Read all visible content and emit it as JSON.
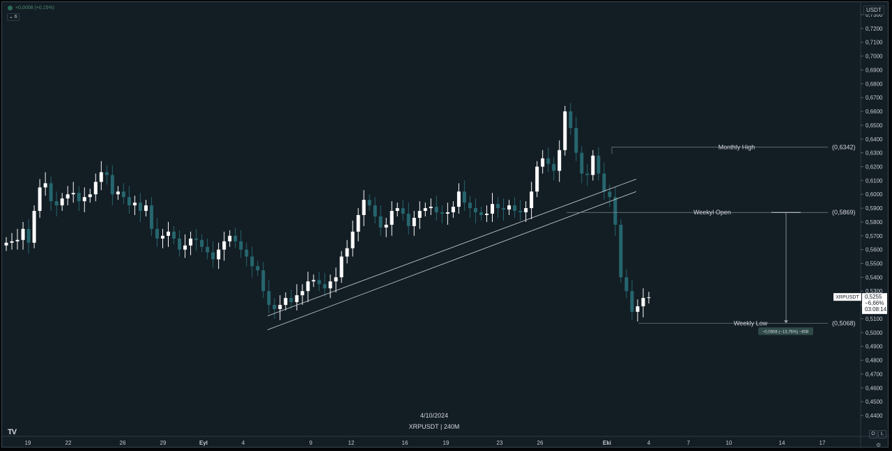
{
  "legend": {
    "change_text": "+0,0008 (+0,15%)",
    "indicator_box": "⌄ 6"
  },
  "currency": "USDT",
  "caption": {
    "date": "4/10/2024",
    "symbol_interval": "XRPUSDT | 240M"
  },
  "logo_text": "TV",
  "bottom_buttons": {
    "log": "O",
    "lin": "L"
  },
  "gear_icon": "⚙",
  "price_tag": {
    "symbol": "XRPUSDT",
    "price": "0,5255",
    "change": "−6,66%",
    "countdown": "03:08:14"
  },
  "colors": {
    "bg": "#131d24",
    "up": "#ffffff",
    "down": "#26666e",
    "line": "#d4d8dc",
    "text": "#c6ccd2"
  },
  "chart_data": {
    "type": "candlestick",
    "ylim": [
      0.43,
      0.735
    ],
    "y_ticks": [
      "0,7300",
      "0,7200",
      "0,7100",
      "0,7000",
      "0,6900",
      "0,6800",
      "0,6700",
      "0,6600",
      "0,6500",
      "0,6400",
      "0,6300",
      "0,6200",
      "0,6100",
      "0,6000",
      "0,5900",
      "0,5800",
      "0,5700",
      "0,5600",
      "0,5500",
      "0,5400",
      "0,5300",
      "0,5200",
      "0,5100",
      "0,5000",
      "0,4900",
      "0,4800",
      "0,4700",
      "0,4600",
      "0,4500",
      "0,4400"
    ],
    "x_ticks": [
      "19",
      "22",
      "26",
      "29",
      "Eyl",
      "4",
      "9",
      "12",
      "16",
      "19",
      "23",
      "26",
      "Eki",
      "4",
      "7",
      "10",
      "14",
      "17"
    ],
    "price_path": [
      0.565,
      0.566,
      0.567,
      0.575,
      0.565,
      0.588,
      0.605,
      0.608,
      0.595,
      0.592,
      0.597,
      0.6,
      0.601,
      0.595,
      0.598,
      0.6,
      0.609,
      0.616,
      0.614,
      0.6,
      0.602,
      0.598,
      0.592,
      0.594,
      0.588,
      0.592,
      0.575,
      0.568,
      0.57,
      0.573,
      0.568,
      0.56,
      0.563,
      0.568,
      0.567,
      0.562,
      0.558,
      0.553,
      0.56,
      0.566,
      0.57,
      0.566,
      0.56,
      0.555,
      0.548,
      0.545,
      0.53,
      0.52,
      0.517,
      0.52,
      0.525,
      0.522,
      0.527,
      0.53,
      0.537,
      0.538,
      0.535,
      0.532,
      0.537,
      0.54,
      0.555,
      0.561,
      0.573,
      0.585,
      0.596,
      0.592,
      0.584,
      0.576,
      0.578,
      0.588,
      0.59,
      0.586,
      0.577,
      0.583,
      0.588,
      0.59,
      0.591,
      0.587,
      0.586,
      0.587,
      0.591,
      0.602,
      0.594,
      0.59,
      0.587,
      0.585,
      0.586,
      0.593,
      0.59,
      0.589,
      0.592,
      0.588,
      0.587,
      0.59,
      0.602,
      0.62,
      0.626,
      0.622,
      0.617,
      0.632,
      0.66,
      0.648,
      0.63,
      0.615,
      0.614,
      0.628,
      0.615,
      0.602,
      0.598,
      0.578,
      0.54,
      0.53,
      0.515,
      0.519,
      0.525,
      0.5255
    ],
    "trendlines": [
      {
        "x1_index": 47,
        "y1": 0.512,
        "x2_index": 112,
        "y2": 0.611
      },
      {
        "x1_index": 47,
        "y1": 0.502,
        "x2_index": 112,
        "y2": 0.602
      }
    ],
    "levels": [
      {
        "label": "Monthly High",
        "value_label": "(0,6342)",
        "value": 0.6342
      },
      {
        "label": "Weekyl Open",
        "value_label": "(0,5869)",
        "value": 0.5869
      },
      {
        "label": "Weekly Low",
        "value_label": "(0,5068)",
        "value": 0.5068
      }
    ],
    "measure": {
      "text": "−0,0808 (−13,76%) −808"
    }
  }
}
